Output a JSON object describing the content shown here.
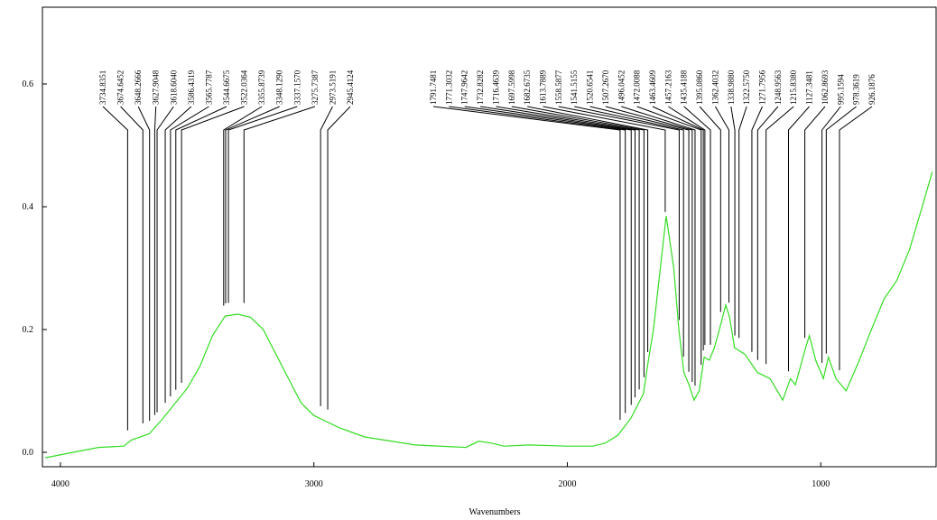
{
  "chart_data": {
    "type": "line",
    "xlabel": "Wavenumbers",
    "x": [
      4060,
      3950,
      3850,
      3750,
      3720,
      3650,
      3600,
      3500,
      3450,
      3400,
      3350,
      3300,
      3250,
      3200,
      3150,
      3100,
      3050,
      3000,
      2950,
      2900,
      2800,
      2600,
      2400,
      2350,
      2300,
      2250,
      2150,
      2000,
      1900,
      1850,
      1800,
      1750,
      1700,
      1680,
      1660,
      1610,
      1580,
      1560,
      1540,
      1520,
      1500,
      1480,
      1460,
      1440,
      1420,
      1400,
      1375,
      1360,
      1340,
      1300,
      1250,
      1200,
      1150,
      1120,
      1100,
      1060,
      1045,
      1020,
      990,
      970,
      940,
      900,
      850,
      800,
      750,
      700,
      650,
      600,
      560
    ],
    "values": [
      -0.009,
      0.0,
      0.008,
      0.01,
      0.02,
      0.03,
      0.053,
      0.104,
      0.14,
      0.19,
      0.222,
      0.225,
      0.22,
      0.2,
      0.16,
      0.12,
      0.08,
      0.06,
      0.05,
      0.04,
      0.025,
      0.012,
      0.008,
      0.018,
      0.015,
      0.01,
      0.012,
      0.01,
      0.01,
      0.015,
      0.028,
      0.055,
      0.095,
      0.15,
      0.2,
      0.385,
      0.3,
      0.2,
      0.13,
      0.11,
      0.085,
      0.1,
      0.155,
      0.15,
      0.17,
      0.2,
      0.24,
      0.22,
      0.17,
      0.16,
      0.13,
      0.12,
      0.085,
      0.12,
      0.11,
      0.17,
      0.19,
      0.15,
      0.12,
      0.155,
      0.12,
      0.1,
      0.148,
      0.2,
      0.25,
      0.28,
      0.33,
      0.4,
      0.457
    ],
    "color": "#33dd22",
    "xlim": [
      4071,
      545
    ],
    "ylim": [
      -0.0235,
      0.725
    ],
    "xticks": [
      4000,
      3000,
      2000,
      1000
    ],
    "yticks": [
      {
        "value": 0,
        "label": "0.0"
      },
      0.2,
      0.4,
      0.6
    ],
    "peaks": [
      3734.8351,
      3674.6452,
      3648.2666,
      3627.9048,
      3618.604,
      3586.4319,
      3565.7787,
      3544.6675,
      3522.0364,
      3355.8739,
      3348.129,
      3337.157,
      3275.7387,
      2973.5191,
      2945.4124,
      1791.7481,
      1771.3032,
      1747.9642,
      1732.8282,
      1716.4639,
      1697.5998,
      1682.6735,
      1613.7889,
      1558.5877,
      1541.5155,
      1520.6541,
      1507.267,
      1496.0452,
      1472.0088,
      1463.4609,
      1457.2163,
      1435.4188,
      1395.086,
      1362.4032,
      1338.988,
      1322.575,
      1271.7956,
      1248.9563,
      1215.838,
      1127.3481,
      1062.8693,
      995.1594,
      978.3619,
      926.1876
    ],
    "peak_labels": [
      "3734.8351",
      "3674.6452",
      "3648.2666",
      "3627.9048",
      "3618.6040",
      "3586.4319",
      "3565.7787",
      "3544.6675",
      "3522.0364",
      "3355.8739",
      "3348.1290",
      "3337.1570",
      "3275.7387",
      "2973.5191",
      "2945.4124",
      "1791.7481",
      "1771.3032",
      "1747.9642",
      "1732.8282",
      "1716.4639",
      "1697.5998",
      "1682.6735",
      "1613.7889",
      "1558.5877",
      "1541.5155",
      "1520.6541",
      "1507.2670",
      "1496.0452",
      "1472.0088",
      "1463.4609",
      "1457.2163",
      "1435.4188",
      "1395.0860",
      "1362.4032",
      "1338.9880",
      "1322.5750",
      "1271.7956",
      "1248.9563",
      "1215.8380",
      "1127.3481",
      "1062.8693",
      "995.1594",
      "978.3619",
      "926.1876"
    ]
  }
}
